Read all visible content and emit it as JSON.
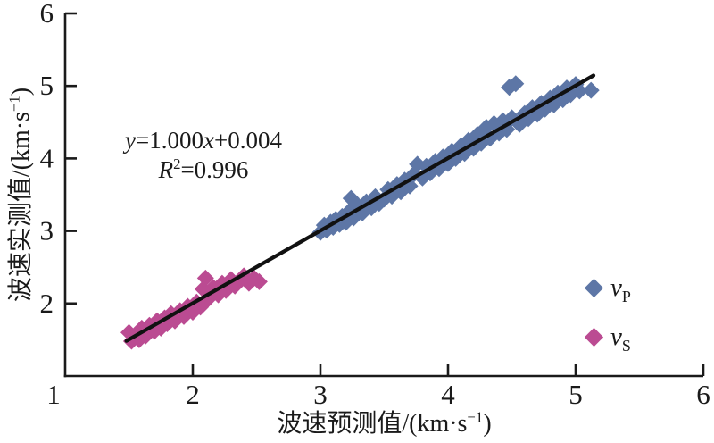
{
  "figure": {
    "background": "#ffffff",
    "annotation": {
      "eq_y": "y",
      "eq_mid": "=1.000",
      "eq_x": "x",
      "eq_tail": "+0.004",
      "r2_var": "R",
      "r2_sup": "2",
      "r2_tail": "=0.996"
    },
    "legend": [
      {
        "label": "v",
        "sub": "P"
      },
      {
        "label": "v",
        "sub": "S"
      }
    ]
  },
  "chart_data": {
    "type": "scatter",
    "title": "",
    "xlabel": {
      "pre": "波速预测值/(km·s",
      "sup": "−1",
      "post": ")"
    },
    "ylabel": {
      "pre": "波速实测值/(km·s",
      "sup": "−1",
      "post": ")"
    },
    "xlim": [
      1,
      6
    ],
    "ylim": [
      1,
      6
    ],
    "x_ticks": [
      1,
      2,
      3,
      4,
      5,
      6
    ],
    "y_ticks": [
      1,
      2,
      3,
      4,
      5,
      6
    ],
    "x_tick_labels": [
      "1",
      "2",
      "3",
      "4",
      "5",
      "6"
    ],
    "y_tick_labels": [
      "",
      "2",
      "3",
      "4",
      "5",
      "6"
    ],
    "grid": false,
    "legend_position": "lower right",
    "axis_color": "#1a1a1a",
    "fit_line": {
      "equation": "y=1.000x+0.004",
      "r_squared": "R²=0.996",
      "color": "#111111",
      "x_start": 1.48,
      "y_start": 1.484,
      "x_end": 5.14,
      "y_end": 5.144
    },
    "series": [
      {
        "name": "vP",
        "marker": "diamond",
        "color": "#5d76a6",
        "points": [
          [
            3.0,
            2.98
          ],
          [
            3.03,
            3.08
          ],
          [
            3.05,
            3.01
          ],
          [
            3.08,
            3.12
          ],
          [
            3.1,
            3.05
          ],
          [
            3.12,
            3.16
          ],
          [
            3.15,
            3.09
          ],
          [
            3.17,
            3.2
          ],
          [
            3.2,
            3.12
          ],
          [
            3.22,
            3.26
          ],
          [
            3.24,
            3.45
          ],
          [
            3.26,
            3.18
          ],
          [
            3.3,
            3.34
          ],
          [
            3.33,
            3.25
          ],
          [
            3.36,
            3.4
          ],
          [
            3.4,
            3.32
          ],
          [
            3.43,
            3.47
          ],
          [
            3.46,
            3.38
          ],
          [
            3.5,
            3.44
          ],
          [
            3.53,
            3.57
          ],
          [
            3.56,
            3.48
          ],
          [
            3.6,
            3.64
          ],
          [
            3.63,
            3.54
          ],
          [
            3.66,
            3.7
          ],
          [
            3.7,
            3.62
          ],
          [
            3.73,
            3.78
          ],
          [
            3.76,
            3.92
          ],
          [
            3.8,
            3.73
          ],
          [
            3.83,
            3.89
          ],
          [
            3.86,
            3.8
          ],
          [
            3.9,
            3.96
          ],
          [
            3.93,
            3.86
          ],
          [
            3.96,
            4.02
          ],
          [
            4.0,
            3.93
          ],
          [
            4.03,
            4.1
          ],
          [
            4.06,
            4.0
          ],
          [
            4.1,
            4.17
          ],
          [
            4.13,
            4.07
          ],
          [
            4.16,
            4.25
          ],
          [
            4.2,
            4.14
          ],
          [
            4.23,
            4.33
          ],
          [
            4.26,
            4.21
          ],
          [
            4.3,
            4.43
          ],
          [
            4.33,
            4.28
          ],
          [
            4.36,
            4.48
          ],
          [
            4.4,
            4.35
          ],
          [
            4.43,
            4.52
          ],
          [
            4.46,
            4.4
          ],
          [
            4.48,
            4.98
          ],
          [
            4.5,
            4.56
          ],
          [
            4.53,
            5.03
          ],
          [
            4.56,
            4.47
          ],
          [
            4.6,
            4.62
          ],
          [
            4.63,
            4.55
          ],
          [
            4.66,
            4.7
          ],
          [
            4.7,
            4.61
          ],
          [
            4.73,
            4.76
          ],
          [
            4.76,
            4.68
          ],
          [
            4.8,
            4.83
          ],
          [
            4.83,
            4.74
          ],
          [
            4.86,
            4.9
          ],
          [
            4.9,
            4.81
          ],
          [
            4.93,
            4.97
          ],
          [
            4.96,
            4.88
          ],
          [
            5.0,
            5.02
          ],
          [
            5.03,
            4.93
          ],
          [
            5.12,
            4.94
          ]
        ]
      },
      {
        "name": "vS",
        "marker": "diamond",
        "color": "#bb4b92",
        "points": [
          [
            1.5,
            1.6
          ],
          [
            1.52,
            1.48
          ],
          [
            1.55,
            1.57
          ],
          [
            1.58,
            1.5
          ],
          [
            1.6,
            1.66
          ],
          [
            1.63,
            1.55
          ],
          [
            1.66,
            1.7
          ],
          [
            1.7,
            1.62
          ],
          [
            1.72,
            1.76
          ],
          [
            1.75,
            1.66
          ],
          [
            1.78,
            1.8
          ],
          [
            1.8,
            1.72
          ],
          [
            1.83,
            1.86
          ],
          [
            1.86,
            1.76
          ],
          [
            1.9,
            1.9
          ],
          [
            1.93,
            1.82
          ],
          [
            1.96,
            1.96
          ],
          [
            2.0,
            1.88
          ],
          [
            2.03,
            2.02
          ],
          [
            2.06,
            1.95
          ],
          [
            2.08,
            2.2
          ],
          [
            2.1,
            2.35
          ],
          [
            2.12,
            2.06
          ],
          [
            2.16,
            2.22
          ],
          [
            2.2,
            2.12
          ],
          [
            2.23,
            2.28
          ],
          [
            2.26,
            2.18
          ],
          [
            2.3,
            2.33
          ],
          [
            2.33,
            2.24
          ],
          [
            2.36,
            2.3
          ],
          [
            2.4,
            2.38
          ],
          [
            2.44,
            2.28
          ],
          [
            2.48,
            2.35
          ],
          [
            2.52,
            2.3
          ]
        ]
      }
    ]
  }
}
